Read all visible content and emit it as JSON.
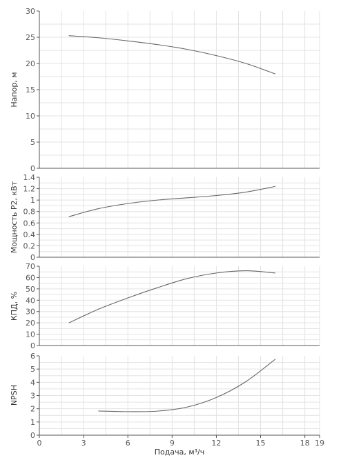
{
  "chart_data": [
    {
      "type": "line",
      "ylabel": "Напор, м",
      "ylim": [
        0,
        30
      ],
      "yticks": [
        0,
        5,
        10,
        15,
        20,
        25,
        30
      ],
      "xlim": [
        0,
        19
      ],
      "series": [
        {
          "x": [
            2,
            4,
            6,
            8,
            10,
            12,
            14,
            16
          ],
          "y": [
            25.3,
            24.9,
            24.3,
            23.6,
            22.7,
            21.5,
            20.0,
            18.0
          ]
        }
      ]
    },
    {
      "type": "line",
      "ylabel": "Мощность P2, кВт",
      "ylim": [
        0,
        1.4
      ],
      "yticks": [
        "0",
        "0.2",
        "0.4",
        "0.6",
        "0.8",
        "1",
        "1.2",
        "1.4"
      ],
      "xlim": [
        0,
        19
      ],
      "series": [
        {
          "x": [
            2,
            4,
            6,
            8,
            10,
            12,
            14,
            16
          ],
          "y": [
            0.71,
            0.85,
            0.94,
            1.0,
            1.04,
            1.08,
            1.14,
            1.24
          ]
        }
      ]
    },
    {
      "type": "line",
      "ylabel": "КПД, %",
      "ylim": [
        0,
        70
      ],
      "yticks": [
        0,
        10,
        20,
        30,
        40,
        50,
        60,
        70
      ],
      "xlim": [
        0,
        19
      ],
      "series": [
        {
          "x": [
            2,
            4,
            6,
            8,
            10,
            12,
            14,
            16
          ],
          "y": [
            20,
            32,
            42,
            51,
            59,
            64,
            66,
            64
          ]
        }
      ]
    },
    {
      "type": "line",
      "ylabel": "NPSH",
      "ylim": [
        0,
        6
      ],
      "yticks": [
        0,
        1,
        2,
        3,
        4,
        5,
        6
      ],
      "xlim": [
        0,
        19
      ],
      "series": [
        {
          "x": [
            4,
            6,
            8,
            10,
            12,
            14,
            16
          ],
          "y": [
            1.83,
            1.78,
            1.82,
            2.12,
            2.85,
            4.05,
            5.75
          ]
        }
      ]
    }
  ],
  "x_axis": {
    "xlabel": "Подача, м³/ч",
    "xlim": [
      0,
      19
    ],
    "ticks": [
      0,
      3,
      6,
      9,
      12,
      15,
      18,
      19
    ]
  }
}
